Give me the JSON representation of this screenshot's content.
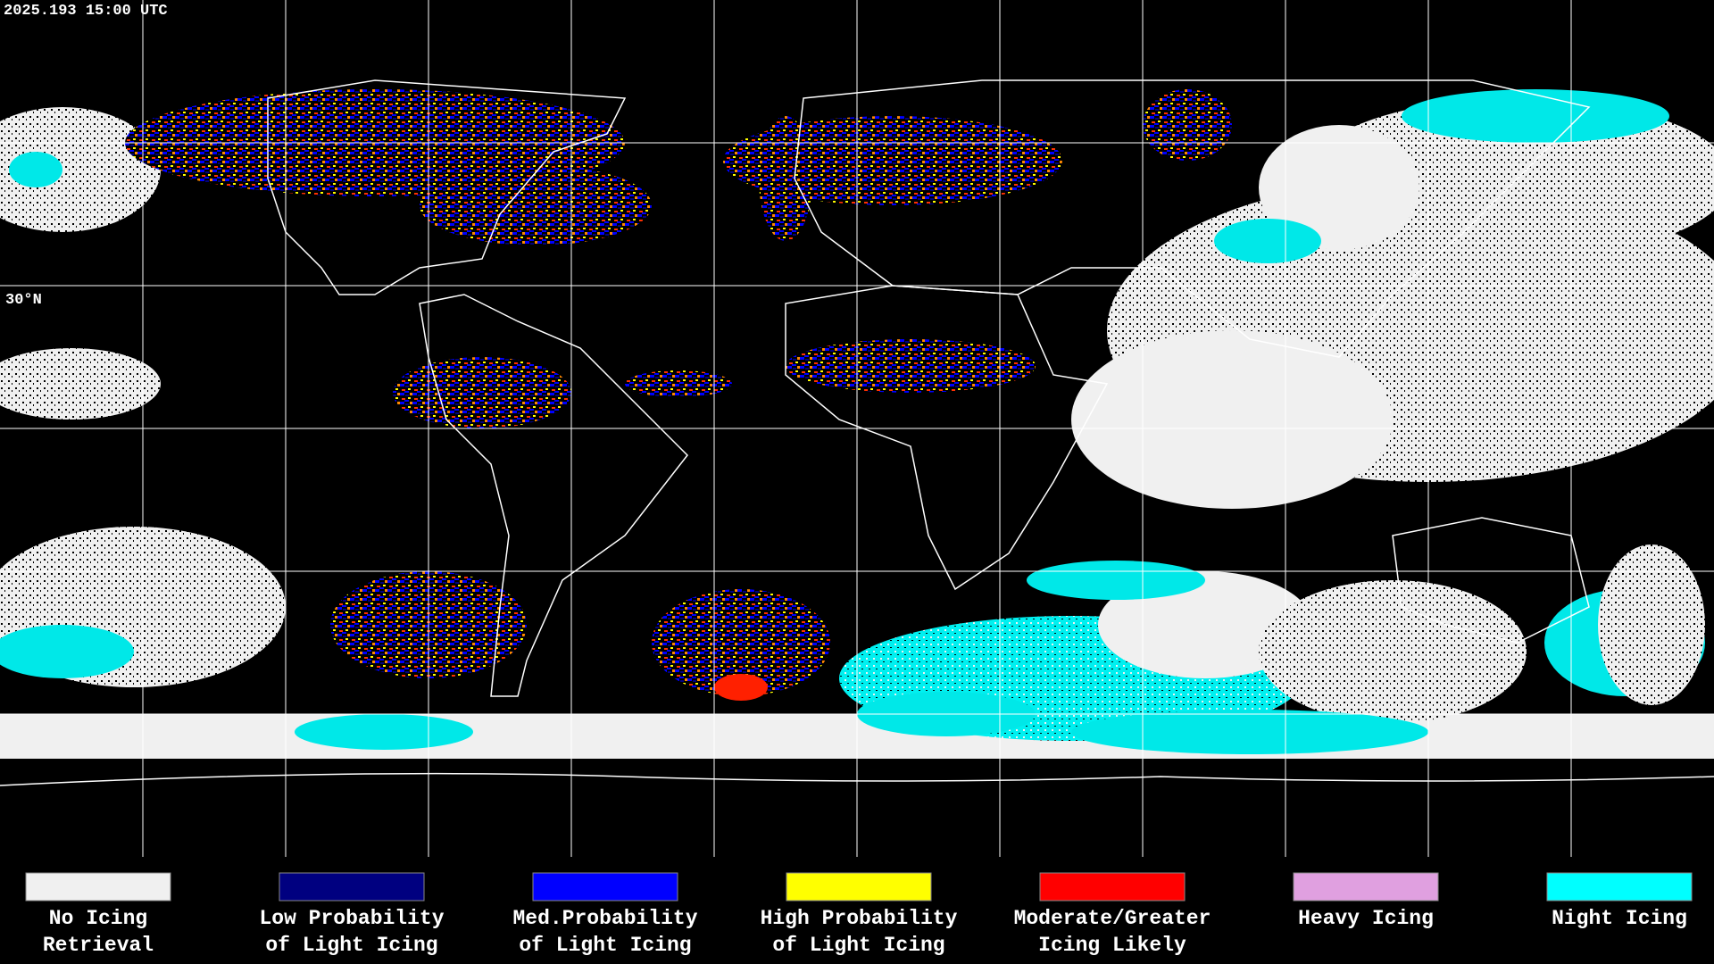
{
  "timestamp": "2025.193 15:00 UTC",
  "map": {
    "lat_labels": [
      "30°N"
    ]
  },
  "legend": {
    "items": [
      {
        "label": [
          "No Icing",
          "Retrieval"
        ],
        "color": "#f0f0f0"
      },
      {
        "label": [
          "Low Probability",
          "of Light Icing"
        ],
        "color": "#000080"
      },
      {
        "label": [
          "Med.Probability",
          "of Light Icing"
        ],
        "color": "#0000ff"
      },
      {
        "label": [
          "High Probability",
          "of Light Icing"
        ],
        "color": "#ffff00"
      },
      {
        "label": [
          "Moderate/Greater",
          "Icing Likely"
        ],
        "color": "#ff0000"
      },
      {
        "label": [
          "Heavy Icing"
        ],
        "color": "#e0a0e0"
      },
      {
        "label": [
          "Night Icing"
        ],
        "color": "#00ffff"
      }
    ]
  }
}
